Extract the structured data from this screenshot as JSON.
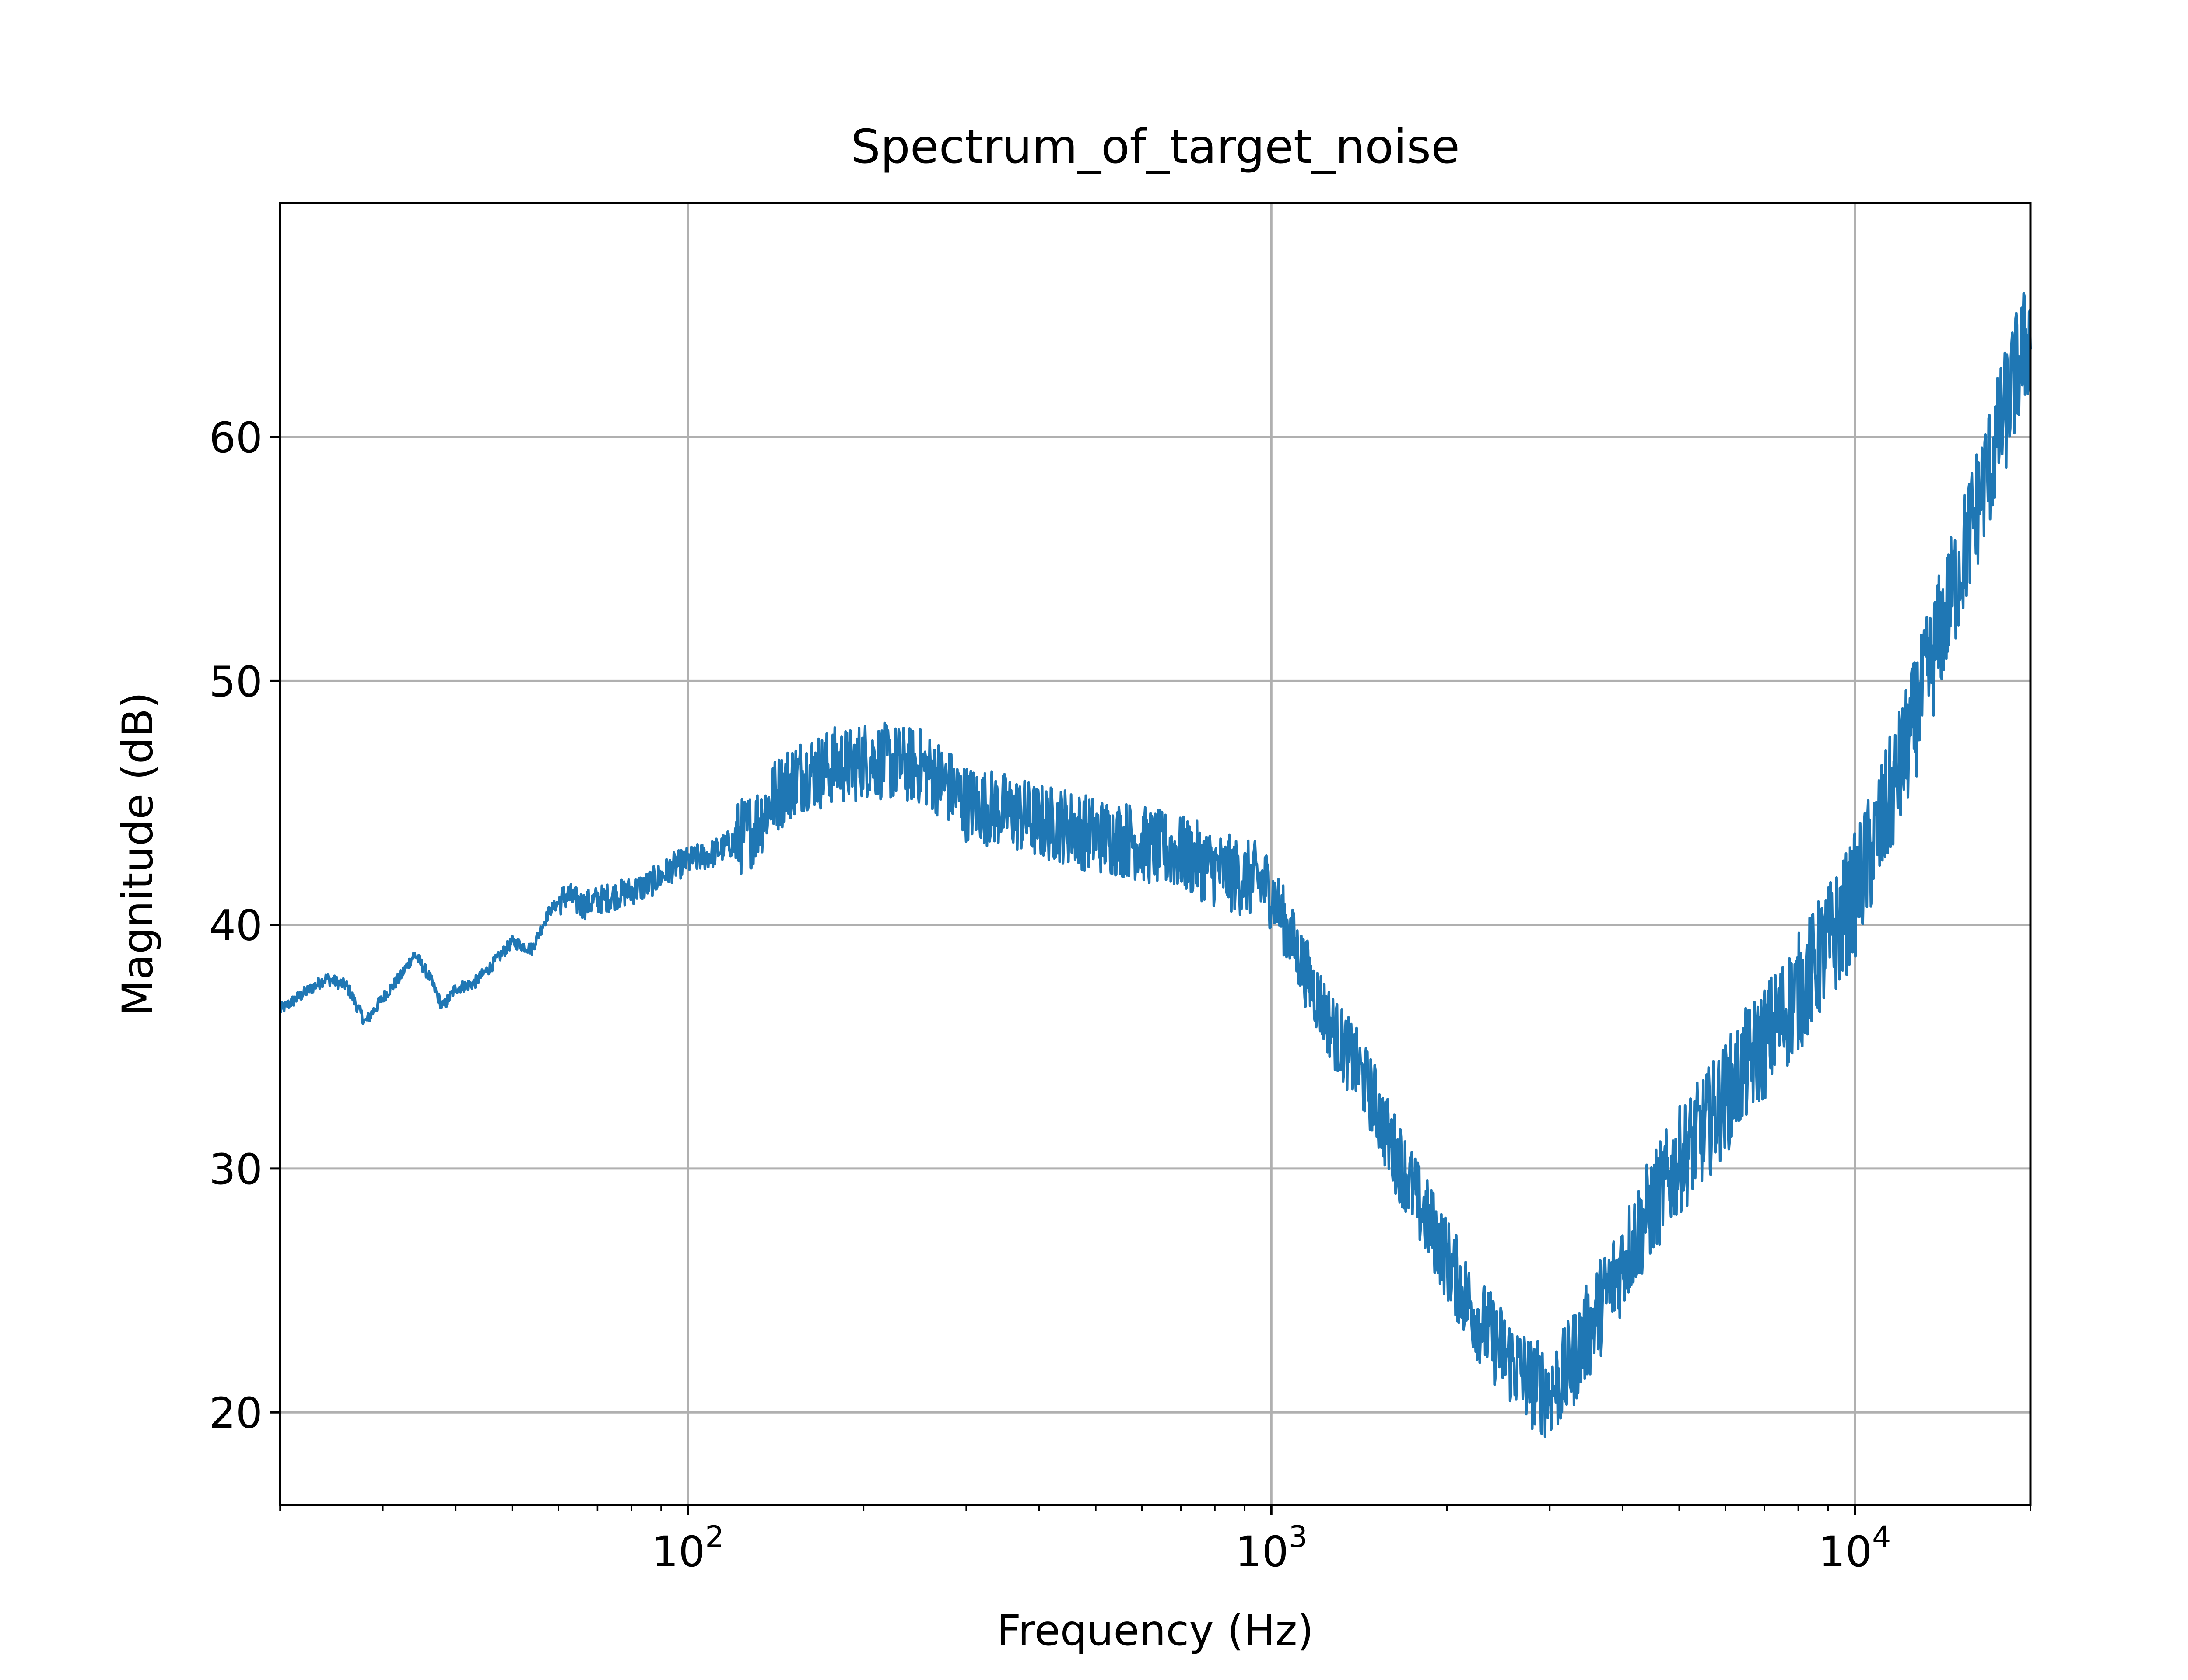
{
  "chart_data": {
    "type": "line",
    "title": "Spectrum_of_target_noise",
    "xlabel": "Frequency (Hz)",
    "ylabel": "Magnitude (dB)",
    "x_scale": "log",
    "xlim": [
      20,
      20000
    ],
    "ylim": [
      16.2,
      69.6
    ],
    "x_ticks": [
      {
        "value": 100,
        "base": "10",
        "exp": "2"
      },
      {
        "value": 1000,
        "base": "10",
        "exp": "3"
      },
      {
        "value": 10000,
        "base": "10",
        "exp": "4"
      }
    ],
    "y_ticks": [
      {
        "value": 20,
        "label": "20"
      },
      {
        "value": 30,
        "label": "30"
      },
      {
        "value": 40,
        "label": "40"
      },
      {
        "value": 50,
        "label": "50"
      },
      {
        "value": 60,
        "label": "60"
      }
    ],
    "grid": true,
    "line_color": "#1f77b4",
    "series": [
      {
        "x": [
          20,
          22,
          24,
          26,
          28,
          30,
          32,
          34,
          36,
          38,
          40,
          43,
          46,
          50,
          54,
          58,
          62,
          66,
          70,
          75,
          80,
          85,
          90,
          95,
          100,
          110,
          120,
          130,
          140,
          150,
          160,
          170,
          180,
          190,
          200,
          215,
          230,
          250,
          270,
          300,
          330,
          360,
          400,
          440,
          480,
          520,
          570,
          620,
          680,
          740,
          800,
          870,
          950,
          1000,
          1100,
          1200,
          1300,
          1400,
          1500,
          1600,
          1700,
          1800,
          1900,
          2000,
          2200,
          2400,
          2600,
          2800,
          3000,
          3200,
          3500,
          3800,
          4100,
          4500,
          5000,
          5500,
          6000,
          6500,
          7000,
          7500,
          8000,
          8500,
          9000,
          9500,
          10000,
          11000,
          12000,
          13000,
          14000,
          15000,
          16000,
          17000,
          18000,
          19000,
          20000
        ],
        "y": [
          36.5,
          37.2,
          37.8,
          37.5,
          36.0,
          37.0,
          37.8,
          38.8,
          37.9,
          36.6,
          37.4,
          37.6,
          38.3,
          39.3,
          39.0,
          40.6,
          41.2,
          40.8,
          41.0,
          41.2,
          41.4,
          41.6,
          42.0,
          42.4,
          42.6,
          42.9,
          43.4,
          44.0,
          45.2,
          45.9,
          46.3,
          46.3,
          46.6,
          46.5,
          46.8,
          46.7,
          46.6,
          46.5,
          46.0,
          45.0,
          44.8,
          44.6,
          44.2,
          44.1,
          43.8,
          43.6,
          43.5,
          43.2,
          43.0,
          42.7,
          42.3,
          42.0,
          41.8,
          41.4,
          39.0,
          37.0,
          35.3,
          34.2,
          32.8,
          31.0,
          29.8,
          28.4,
          27.4,
          26.3,
          24.3,
          23.0,
          22.0,
          21.2,
          20.8,
          21.6,
          23.4,
          25.1,
          26.7,
          28.5,
          30.3,
          31.6,
          32.9,
          34.2,
          35.2,
          36.2,
          37.2,
          38.2,
          39.2,
          40.1,
          41.2,
          43.8,
          46.5,
          49.3,
          52.0,
          54.3,
          56.7,
          58.8,
          60.8,
          62.8,
          64.3
        ]
      }
    ]
  }
}
